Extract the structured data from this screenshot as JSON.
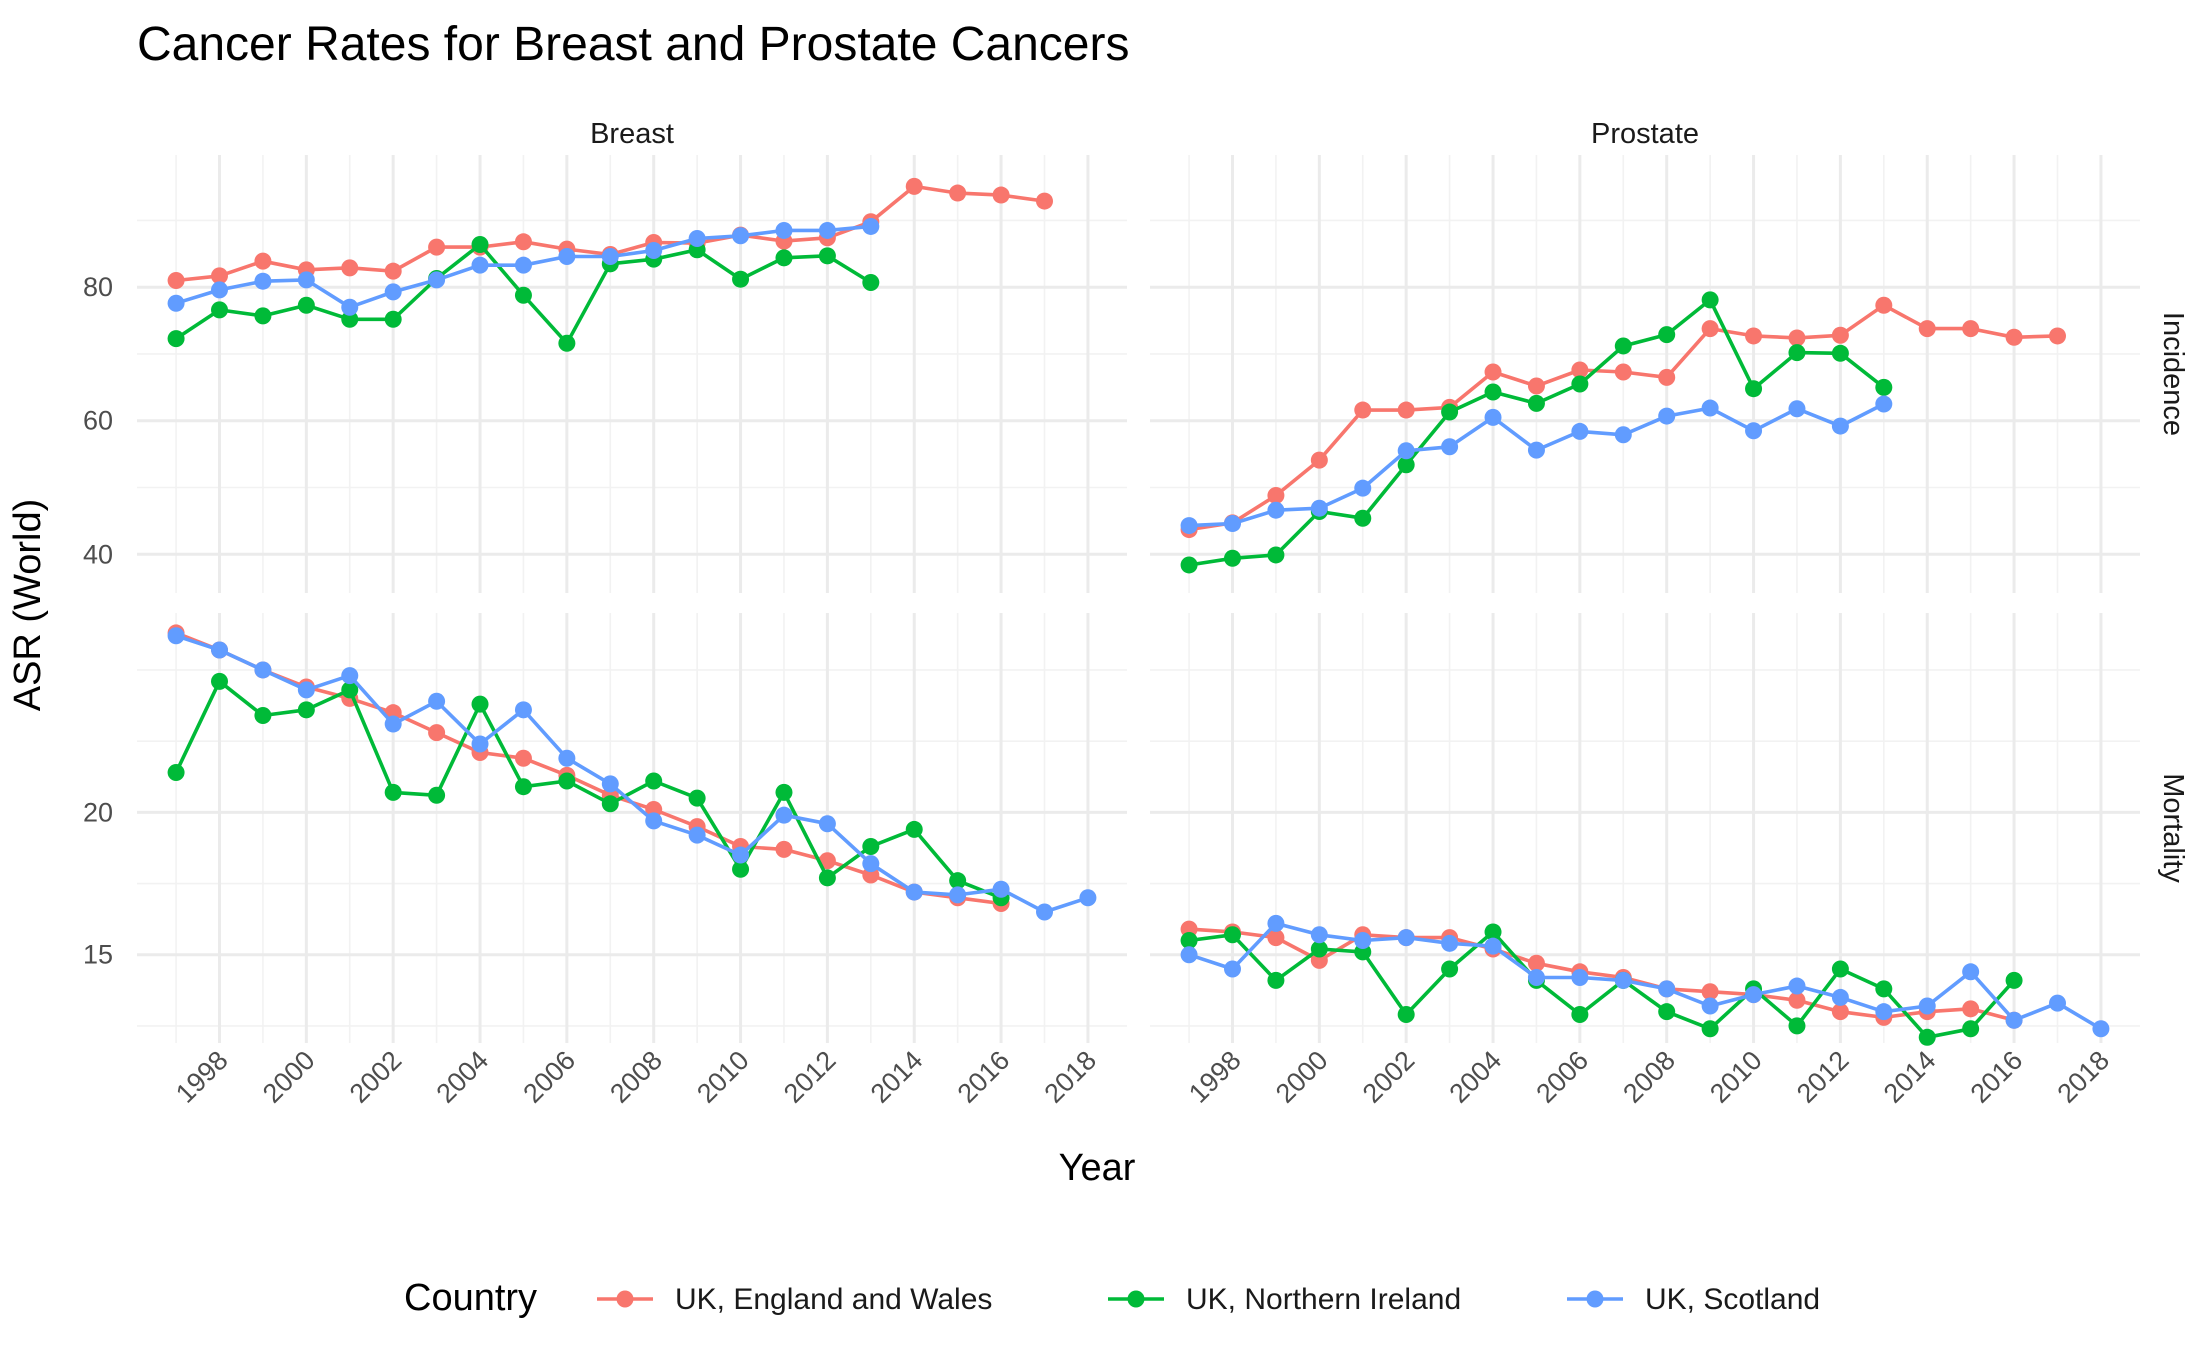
{
  "chart_data": {
    "type": "line",
    "title": "Cancer Rates for Breast and Prostate Cancers",
    "xlabel": "Year",
    "ylabel": "ASR (World)",
    "x_ticks": [
      1998,
      2000,
      2002,
      2004,
      2006,
      2008,
      2010,
      2012,
      2014,
      2016,
      2018
    ],
    "xlim": [
      1996.1,
      2018.9
    ],
    "facet_columns": [
      "Breast",
      "Prostate"
    ],
    "facet_rows": [
      {
        "label": "Incidence",
        "ylim": [
          34.2,
          99.8
        ],
        "y_ticks": [
          40,
          60,
          80
        ],
        "y_minor": [
          50,
          70,
          90
        ]
      },
      {
        "label": "Mortality",
        "ylim": [
          11.9,
          27.0
        ],
        "y_ticks": [
          15,
          20
        ],
        "y_minor": [
          12.5,
          17.5,
          22.5,
          25.0
        ]
      }
    ],
    "legend": {
      "title": "Country",
      "position": "bottom"
    },
    "series": [
      {
        "name": "UK, England and Wales",
        "color": "#F8766D"
      },
      {
        "name": "UK, Northern Ireland",
        "color": "#00BA38"
      },
      {
        "name": "UK, Scotland",
        "color": "#619CFF"
      }
    ],
    "panels": [
      {
        "column": "Breast",
        "row": "Incidence",
        "lines": [
          {
            "series": "UK, England and Wales",
            "x": [
              1997,
              1998,
              1999,
              2000,
              2001,
              2002,
              2003,
              2004,
              2005,
              2006,
              2007,
              2008,
              2009,
              2010,
              2011,
              2012,
              2013,
              2014,
              2015,
              2016,
              2017
            ],
            "y": [
              81.0,
              81.7,
              83.9,
              82.6,
              82.9,
              82.4,
              86.0,
              86.0,
              86.8,
              85.7,
              84.9,
              86.7,
              86.6,
              87.8,
              86.9,
              87.4,
              89.8,
              95.1,
              94.1,
              93.8,
              92.9
            ]
          },
          {
            "series": "UK, Northern Ireland",
            "x": [
              1997,
              1998,
              1999,
              2000,
              2001,
              2002,
              2003,
              2004,
              2005,
              2006,
              2007,
              2008,
              2009,
              2010,
              2011,
              2012,
              2013
            ],
            "y": [
              72.3,
              76.6,
              75.7,
              77.3,
              75.2,
              75.2,
              81.3,
              86.4,
              78.8,
              71.6,
              83.5,
              84.2,
              85.6,
              81.2,
              84.4,
              84.7,
              80.7
            ]
          },
          {
            "series": "UK, Scotland",
            "x": [
              1997,
              1998,
              1999,
              2000,
              2001,
              2002,
              2003,
              2004,
              2005,
              2006,
              2007,
              2008,
              2009,
              2010,
              2011,
              2012,
              2013
            ],
            "y": [
              77.6,
              79.6,
              80.9,
              81.1,
              77.0,
              79.3,
              81.1,
              83.3,
              83.3,
              84.6,
              84.6,
              85.5,
              87.3,
              87.7,
              88.5,
              88.5,
              89.1
            ]
          }
        ]
      },
      {
        "column": "Prostate",
        "row": "Incidence",
        "lines": [
          {
            "series": "UK, England and Wales",
            "x": [
              1997,
              1998,
              1999,
              2000,
              2001,
              2002,
              2003,
              2004,
              2005,
              2006,
              2007,
              2008,
              2009,
              2010,
              2011,
              2012,
              2013,
              2014,
              2015,
              2016,
              2017
            ],
            "y": [
              43.7,
              44.7,
              48.8,
              54.1,
              61.6,
              61.6,
              62.0,
              67.3,
              65.2,
              67.6,
              67.3,
              66.5,
              73.8,
              72.7,
              72.4,
              72.8,
              77.3,
              73.8,
              73.8,
              72.5,
              72.7
            ]
          },
          {
            "series": "UK, Northern Ireland",
            "x": [
              1997,
              1998,
              1999,
              2000,
              2001,
              2002,
              2003,
              2004,
              2005,
              2006,
              2007,
              2008,
              2009,
              2010,
              2011,
              2012,
              2013
            ],
            "y": [
              38.4,
              39.4,
              39.9,
              46.4,
              45.4,
              53.4,
              61.3,
              64.3,
              62.6,
              65.5,
              71.2,
              72.9,
              78.1,
              64.8,
              70.2,
              70.1,
              65.0
            ]
          },
          {
            "series": "UK, Scotland",
            "x": [
              1997,
              1998,
              1999,
              2000,
              2001,
              2002,
              2003,
              2004,
              2005,
              2006,
              2007,
              2008,
              2009,
              2010,
              2011,
              2012,
              2013
            ],
            "y": [
              44.3,
              44.6,
              46.6,
              46.9,
              49.9,
              55.5,
              56.1,
              60.5,
              55.6,
              58.4,
              57.9,
              60.7,
              61.9,
              58.5,
              61.8,
              59.2,
              62.5
            ]
          }
        ]
      },
      {
        "column": "Breast",
        "row": "Mortality",
        "lines": [
          {
            "series": "UK, England and Wales",
            "x": [
              1997,
              1998,
              1999,
              2000,
              2001,
              2002,
              2003,
              2004,
              2005,
              2006,
              2007,
              2008,
              2009,
              2010,
              2011,
              2012,
              2013,
              2014,
              2015,
              2016
            ],
            "y": [
              26.3,
              25.7,
              25.0,
              24.4,
              24.0,
              23.5,
              22.8,
              22.1,
              21.9,
              21.3,
              20.6,
              20.1,
              19.5,
              18.8,
              18.7,
              18.3,
              17.8,
              17.2,
              17.0,
              16.8
            ]
          },
          {
            "series": "UK, Northern Ireland",
            "x": [
              1997,
              1998,
              1999,
              2000,
              2001,
              2002,
              2003,
              2004,
              2005,
              2006,
              2007,
              2008,
              2009,
              2010,
              2011,
              2012,
              2013,
              2014,
              2015,
              2016
            ],
            "y": [
              21.4,
              24.6,
              23.4,
              23.6,
              24.3,
              20.7,
              20.6,
              23.8,
              20.9,
              21.1,
              20.3,
              21.1,
              20.5,
              18.0,
              20.7,
              17.7,
              18.8,
              19.4,
              17.6,
              17.0
            ]
          },
          {
            "series": "UK, Scotland",
            "x": [
              1997,
              1998,
              1999,
              2000,
              2001,
              2002,
              2003,
              2004,
              2005,
              2006,
              2007,
              2008,
              2009,
              2010,
              2011,
              2012,
              2013,
              2014,
              2015,
              2016,
              2017,
              2018
            ],
            "y": [
              26.2,
              25.7,
              25.0,
              24.3,
              24.8,
              23.1,
              23.9,
              22.4,
              23.6,
              21.9,
              21.0,
              19.7,
              19.2,
              18.5,
              19.9,
              19.6,
              18.2,
              17.2,
              17.1,
              17.3,
              16.5,
              17.0
            ]
          }
        ]
      },
      {
        "column": "Prostate",
        "row": "Mortality",
        "lines": [
          {
            "series": "UK, England and Wales",
            "x": [
              1997,
              1998,
              1999,
              2000,
              2001,
              2002,
              2003,
              2004,
              2005,
              2006,
              2007,
              2008,
              2009,
              2010,
              2011,
              2012,
              2013,
              2014,
              2015,
              2016
            ],
            "y": [
              15.9,
              15.8,
              15.6,
              14.8,
              15.7,
              15.6,
              15.6,
              15.2,
              14.7,
              14.4,
              14.2,
              13.8,
              13.7,
              13.6,
              13.4,
              13.0,
              12.8,
              13.0,
              13.1,
              12.7
            ]
          },
          {
            "series": "UK, Northern Ireland",
            "x": [
              1997,
              1998,
              1999,
              2000,
              2001,
              2002,
              2003,
              2004,
              2005,
              2006,
              2007,
              2008,
              2009,
              2010,
              2011,
              2012,
              2013,
              2014,
              2015,
              2016
            ],
            "y": [
              15.5,
              15.7,
              14.1,
              15.2,
              15.1,
              12.9,
              14.5,
              15.8,
              14.1,
              12.9,
              14.1,
              13.0,
              12.4,
              13.8,
              12.5,
              14.5,
              13.8,
              12.1,
              12.4,
              14.1
            ]
          },
          {
            "series": "UK, Scotland",
            "x": [
              1997,
              1998,
              1999,
              2000,
              2001,
              2002,
              2003,
              2004,
              2005,
              2006,
              2007,
              2008,
              2009,
              2010,
              2011,
              2012,
              2013,
              2014,
              2015,
              2016,
              2017,
              2018
            ],
            "y": [
              15.0,
              14.5,
              16.1,
              15.7,
              15.5,
              15.6,
              15.4,
              15.3,
              14.2,
              14.2,
              14.1,
              13.8,
              13.2,
              13.6,
              13.9,
              13.5,
              13.0,
              13.2,
              14.4,
              12.7,
              13.3,
              12.4
            ]
          }
        ]
      }
    ]
  }
}
